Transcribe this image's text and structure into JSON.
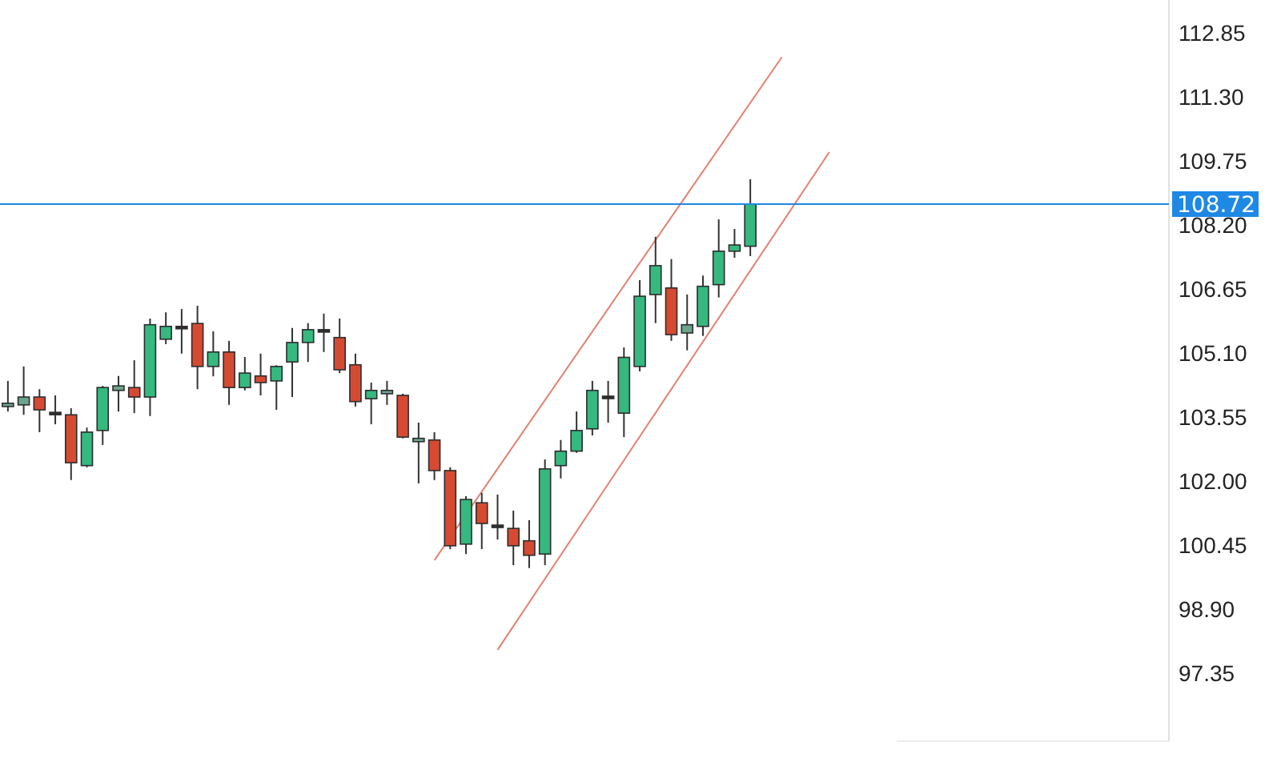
{
  "chart_data": {
    "type": "candlestick",
    "categories": [
      null,
      null,
      null,
      null,
      null,
      null,
      null,
      null,
      null,
      null,
      null,
      null,
      null,
      null,
      null,
      null,
      null,
      null,
      null,
      null,
      null,
      null,
      null,
      null,
      null,
      null,
      null,
      null,
      null,
      null,
      null,
      null,
      null,
      null,
      null,
      null,
      null,
      null,
      null,
      null,
      null,
      null,
      null,
      null,
      null,
      null,
      null,
      null,
      null,
      null,
      null,
      null,
      null,
      null,
      null,
      null,
      null,
      null,
      null,
      null,
      null,
      null,
      null,
      null,
      null,
      null,
      null,
      null,
      null,
      null,
      null,
      null,
      null,
      null
    ],
    "ylim": [
      95.72,
      113.66
    ],
    "yticks": [
      {
        "value": 97.35,
        "label": "97.35"
      },
      {
        "value": 98.9,
        "label": "98.90"
      },
      {
        "value": 100.45,
        "label": "100.45"
      },
      {
        "value": 102,
        "label": "102.00"
      },
      {
        "value": 103.55,
        "label": "103.55"
      },
      {
        "value": 105.1,
        "label": "105.10"
      },
      {
        "value": 106.65,
        "label": "106.65"
      },
      {
        "value": 108.2,
        "label": "108.20"
      },
      {
        "value": 109.75,
        "label": "109.75"
      },
      {
        "value": 111.3,
        "label": "111.30"
      },
      {
        "value": 112.85,
        "label": "112.85"
      }
    ],
    "tick_labels": "y",
    "ref_lines": [
      {
        "axis": "y",
        "value": 108.72,
        "label": "108.72",
        "color": "#1e88e5"
      }
    ],
    "ohlc": [
      [
        103.82,
        104.44,
        103.7,
        103.9
      ],
      [
        103.86,
        104.79,
        103.62,
        104.05
      ],
      [
        104.05,
        104.24,
        103.2,
        103.74
      ],
      [
        103.66,
        104.09,
        103.39,
        103.68
      ],
      [
        103.62,
        103.78,
        102.04,
        102.46
      ],
      [
        102.39,
        103.31,
        102.35,
        103.2
      ],
      [
        103.24,
        104.32,
        102.89,
        104.28
      ],
      [
        104.21,
        104.56,
        103.7,
        104.32
      ],
      [
        104.28,
        104.94,
        103.66,
        104.05
      ],
      [
        104.05,
        105.95,
        103.59,
        105.8
      ],
      [
        105.45,
        106.1,
        105.33,
        105.76
      ],
      [
        105.76,
        106.18,
        105.1,
        105.74
      ],
      [
        105.83,
        106.26,
        104.24,
        104.79
      ],
      [
        104.79,
        105.64,
        104.55,
        105.14
      ],
      [
        105.14,
        105.41,
        103.86,
        104.28
      ],
      [
        104.28,
        105.02,
        104.21,
        104.63
      ],
      [
        104.56,
        105.1,
        104.09,
        104.4
      ],
      [
        104.44,
        104.82,
        103.74,
        104.79
      ],
      [
        104.9,
        105.72,
        104.05,
        105.37
      ],
      [
        105.37,
        105.84,
        104.9,
        105.68
      ],
      [
        105.68,
        106.07,
        105.14,
        105.66
      ],
      [
        105.49,
        105.95,
        104.63,
        104.71
      ],
      [
        104.83,
        105.1,
        103.82,
        103.94
      ],
      [
        104.01,
        104.4,
        103.39,
        104.21
      ],
      [
        104.13,
        104.44,
        103.86,
        104.21
      ],
      [
        104.09,
        104.13,
        103.05,
        103.08
      ],
      [
        102.97,
        103.43,
        101.96,
        103.05
      ],
      [
        103.01,
        103.2,
        102.04,
        102.27
      ],
      [
        102.27,
        102.35,
        100.37,
        100.45
      ],
      [
        100.49,
        101.65,
        100.25,
        101.57
      ],
      [
        101.49,
        101.73,
        100.37,
        100.99
      ],
      [
        100.95,
        101.69,
        100.6,
        100.93
      ],
      [
        100.87,
        101.3,
        99.98,
        100.45
      ],
      [
        100.57,
        101.07,
        99.91,
        100.22
      ],
      [
        100.25,
        102.54,
        99.98,
        102.31
      ],
      [
        102.39,
        103.01,
        102.08,
        102.74
      ],
      [
        102.74,
        103.7,
        102.7,
        103.24
      ],
      [
        103.28,
        104.44,
        103.12,
        104.21
      ],
      [
        104.07,
        104.44,
        103.43,
        104.05
      ],
      [
        103.66,
        105.25,
        103.08,
        105.01
      ],
      [
        104.79,
        106.88,
        104.67,
        106.49
      ],
      [
        106.53,
        107.93,
        105.84,
        107.23
      ],
      [
        106.69,
        107.39,
        105.41,
        105.56
      ],
      [
        105.6,
        106.53,
        105.18,
        105.8
      ],
      [
        105.76,
        106.99,
        105.53,
        106.73
      ],
      [
        106.77,
        108.35,
        106.46,
        107.58
      ],
      [
        107.58,
        108.12,
        107.42,
        107.73
      ],
      [
        107.7,
        109.32,
        107.46,
        108.72
      ],
      null,
      null,
      null,
      null,
      null,
      null,
      null,
      null,
      null,
      null,
      null,
      null,
      null,
      null,
      null,
      null,
      null,
      null,
      null,
      null,
      null,
      null,
      null,
      null,
      null,
      null
    ],
    "colors": [
      "#6aa58c",
      "#6aa58c",
      "#d64a32",
      "#2d2d2d",
      "#d64a32",
      "#35b97f",
      "#35b97f",
      "#6aa58c",
      "#d64a32",
      "#35b97f",
      "#35b97f",
      "#2d2d2d",
      "#d64a32",
      "#35b97f",
      "#d64a32",
      "#35b97f",
      "#d64a32",
      "#35b97f",
      "#35b97f",
      "#35b97f",
      "#2d2d2d",
      "#d64a32",
      "#d64a32",
      "#35b97f",
      "#6aa58c",
      "#d64a32",
      "#6aa58c",
      "#d64a32",
      "#d64a32",
      "#35b97f",
      "#d64a32",
      "#2d2d2d",
      "#d64a32",
      "#d64a32",
      "#35b97f",
      "#35b97f",
      "#35b97f",
      "#35b97f",
      "#2d2d2d",
      "#35b97f",
      "#35b97f",
      "#35b97f",
      "#d64a32",
      "#6aa58c",
      "#35b97f",
      "#35b97f",
      "#35b97f",
      "#35b97f",
      null,
      null,
      null,
      null,
      null,
      null,
      null,
      null,
      null,
      null,
      null,
      null,
      null,
      null,
      null,
      null,
      null,
      null,
      null,
      null,
      null,
      null,
      null,
      null,
      null,
      null
    ],
    "series": [
      {
        "type": "line",
        "color": "#e3806f",
        "values": [
          null,
          null,
          null,
          null,
          null,
          null,
          null,
          null,
          null,
          null,
          null,
          null,
          null,
          null,
          null,
          null,
          null,
          null,
          null,
          null,
          null,
          null,
          null,
          null,
          null,
          null,
          null,
          100.1,
          null,
          null,
          null,
          null,
          null,
          null,
          null,
          null,
          null,
          null,
          null,
          null,
          null,
          null,
          null,
          null,
          null,
          null,
          null,
          null,
          null,
          112.28,
          null,
          null,
          null,
          null,
          null,
          null,
          null,
          null,
          null,
          null,
          null,
          null,
          null,
          null,
          null,
          null,
          null,
          null,
          null,
          null,
          null,
          null,
          null,
          null
        ]
      },
      {
        "type": "line",
        "color": "#e3806f",
        "values": [
          null,
          null,
          null,
          null,
          null,
          null,
          null,
          null,
          null,
          null,
          null,
          null,
          null,
          null,
          null,
          null,
          null,
          null,
          null,
          null,
          null,
          null,
          null,
          null,
          null,
          null,
          null,
          null,
          null,
          null,
          null,
          97.93,
          null,
          null,
          null,
          null,
          null,
          null,
          null,
          null,
          null,
          null,
          null,
          null,
          null,
          null,
          null,
          null,
          null,
          null,
          null,
          null,
          109.98,
          null,
          null,
          null,
          null,
          null,
          null,
          null,
          null,
          null,
          null,
          null,
          null,
          null,
          null,
          null,
          null,
          null,
          null,
          null,
          null,
          null
        ]
      }
    ]
  }
}
